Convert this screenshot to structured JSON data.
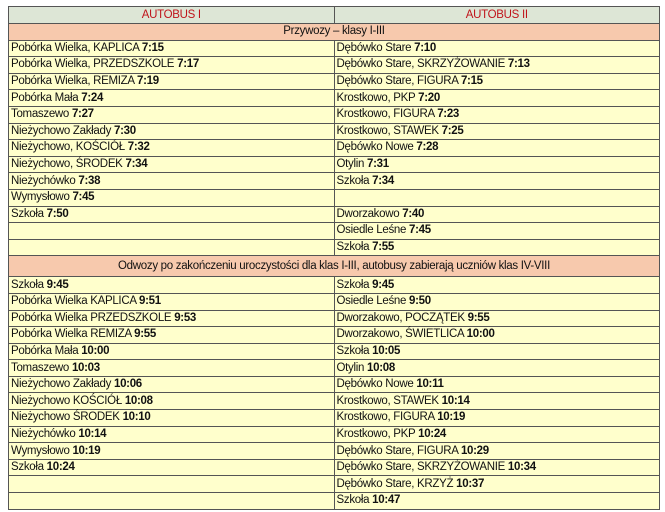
{
  "headers": [
    "AUTOBUS I",
    "AUTOBUS II"
  ],
  "sections": [
    {
      "title": "Przywozy – klasy I-III",
      "rows": [
        [
          [
            "Pobórka Wielka, KAPLICA",
            "7:15"
          ],
          [
            "Dębówko Stare",
            "7:10"
          ]
        ],
        [
          [
            "Pobórka Wielka, PRZEDSZKOLE",
            "7:17"
          ],
          [
            "Dębówko Stare, SKRZYŻOWANIE",
            "7:13"
          ]
        ],
        [
          [
            "Pobórka Wielka, REMIZA",
            "7:19"
          ],
          [
            "Dębówko Stare, FIGURA",
            "7:15"
          ]
        ],
        [
          [
            "Pobórka Mała",
            "7:24"
          ],
          [
            "Krostkowo, PKP",
            "7:20"
          ]
        ],
        [
          [
            "Tomaszewo",
            "7:27"
          ],
          [
            "Krostkowo, FIGURA",
            "7:23"
          ]
        ],
        [
          [
            "Nieżychowo Zakłady",
            "7:30"
          ],
          [
            "Krostkowo, STAWEK",
            "7:25"
          ]
        ],
        [
          [
            "Nieżychowo, KOŚCIÓŁ",
            "7:32"
          ],
          [
            "Dębówko Nowe",
            "7:28"
          ]
        ],
        [
          [
            "Nieżychowo, ŚRODEK",
            "7:34"
          ],
          [
            "Otylin",
            "7:31"
          ]
        ],
        [
          [
            "Nieżychówko",
            "7:38"
          ],
          [
            "Szkoła",
            "7:34"
          ]
        ],
        [
          [
            "Wymysłowo",
            "7:45"
          ],
          [
            "",
            ""
          ]
        ],
        [
          [
            "Szkoła",
            "7:50"
          ],
          [
            "Dworzakowo",
            "7:40"
          ]
        ],
        [
          [
            "",
            ""
          ],
          [
            "Osiedle Leśne",
            "7:45"
          ]
        ],
        [
          [
            "",
            ""
          ],
          [
            "Szkoła",
            "7:55"
          ]
        ]
      ]
    },
    {
      "title": "Odwozy po zakończeniu uroczystości dla klas I-III, autobusy zabierają uczniów klas IV-VIII",
      "rows": [
        [
          [
            "Szkoła",
            "9:45"
          ],
          [
            "Szkoła",
            "9:45"
          ]
        ],
        [
          [
            "Pobórka Wielka KAPLICA",
            "9:51"
          ],
          [
            "Osiedle Leśne",
            "9:50"
          ]
        ],
        [
          [
            "Pobórka Wielka PRZEDSZKOLE",
            "9:53"
          ],
          [
            "Dworzakowo, POCZĄTEK",
            "9:55"
          ]
        ],
        [
          [
            "Pobórka Wielka REMIZA",
            "9:55"
          ],
          [
            "Dworzakowo, ŚWIETLICA",
            "10:00"
          ]
        ],
        [
          [
            "Pobórka Mała",
            "10:00"
          ],
          [
            "Szkoła",
            "10:05"
          ]
        ],
        [
          [
            "Tomaszewo",
            "10:03"
          ],
          [
            "Otylin",
            "10:08"
          ]
        ],
        [
          [
            "Nieżychowo Zakłady",
            "10:06"
          ],
          [
            "Dębówko Nowe",
            "10:11"
          ]
        ],
        [
          [
            "Nieżychowo KOŚCIÓŁ",
            "10:08"
          ],
          [
            "Krostkowo, STAWEK",
            "10:14"
          ]
        ],
        [
          [
            "Nieżychowo ŚRODEK",
            "10:10"
          ],
          [
            "Krostkowo, FIGURA",
            "10:19"
          ]
        ],
        [
          [
            "Nieżychówko",
            "10:14"
          ],
          [
            "Krostkowo, PKP",
            "10:24"
          ]
        ],
        [
          [
            "Wymysłowo",
            "10:19"
          ],
          [
            "Dębówko Stare, FIGURA",
            "10:29"
          ]
        ],
        [
          [
            "Szkoła",
            "10:24"
          ],
          [
            "Dębówko Stare, SKRZYŻOWANIE",
            "10:34"
          ]
        ],
        [
          [
            "",
            ""
          ],
          [
            "Dębówko Stare, KRZYŻ",
            "10:37"
          ]
        ],
        [
          [
            "",
            ""
          ],
          [
            "Szkoła",
            "10:47"
          ]
        ]
      ]
    }
  ]
}
